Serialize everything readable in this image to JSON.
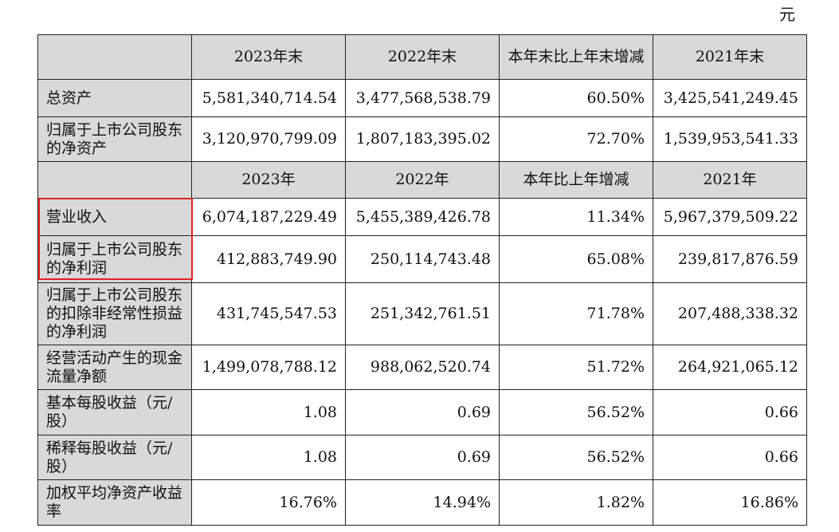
{
  "unit_label": "元",
  "header_1": [
    "",
    "2023年末",
    "2022年末",
    "本年末比上年末增减",
    "2021年末"
  ],
  "balance_rows": [
    {
      "label": "总资产",
      "v2023": "5,581,340,714.54",
      "v2022": "3,477,568,538.79",
      "change": "60.50%",
      "v2021": "3,425,541,249.45"
    },
    {
      "label": "归属于上市公司股东的净资产",
      "v2023": "3,120,970,799.09",
      "v2022": "1,807,183,395.02",
      "change": "72.70%",
      "v2021": "1,539,953,541.33"
    }
  ],
  "header_2": [
    "",
    "2023年",
    "2022年",
    "本年比上年增减",
    "2021年"
  ],
  "income_rows": [
    {
      "label": "营业收入",
      "v2023": "6,074,187,229.49",
      "v2022": "5,455,389,426.78",
      "change": "11.34%",
      "v2021": "5,967,379,509.22"
    },
    {
      "label": "归属于上市公司股东的净利润",
      "v2023": "412,883,749.90",
      "v2022": "250,114,743.48",
      "change": "65.08%",
      "v2021": "239,817,876.59"
    },
    {
      "label": "归属于上市公司股东的扣除非经常性损益的净利润",
      "v2023": "431,745,547.53",
      "v2022": "251,342,761.51",
      "change": "71.78%",
      "v2021": "207,488,338.32"
    },
    {
      "label": "经营活动产生的现金流量净额",
      "v2023": "1,499,078,788.12",
      "v2022": "988,062,520.74",
      "change": "51.72%",
      "v2021": "264,921,065.12"
    },
    {
      "label": "基本每股收益（元/股）",
      "v2023": "1.08",
      "v2022": "0.69",
      "change": "56.52%",
      "v2021": "0.66"
    },
    {
      "label": "稀释每股收益（元/股）",
      "v2023": "1.08",
      "v2022": "0.69",
      "change": "56.52%",
      "v2021": "0.66"
    },
    {
      "label": "加权平均净资产收益率",
      "v2023": "16.76%",
      "v2022": "14.94%",
      "change": "1.82%",
      "v2021": "16.86%"
    }
  ],
  "highlight_color": "#e02020"
}
